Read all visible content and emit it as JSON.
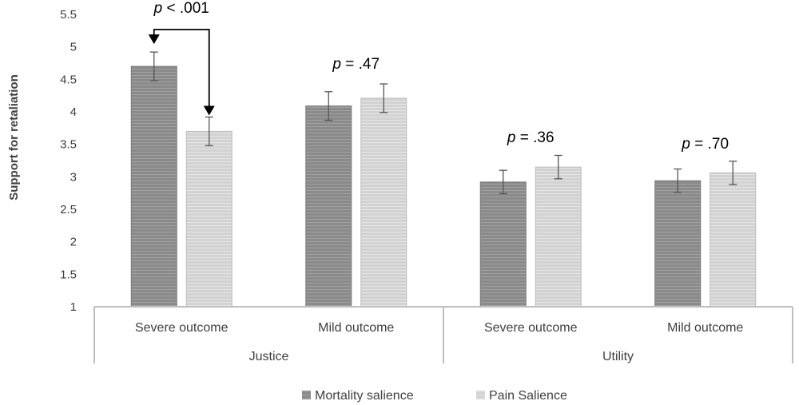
{
  "chart_data": {
    "type": "bar",
    "ylabel": "Support for retaliation",
    "xlabel": "",
    "title": "",
    "ylim": [
      1,
      5.5
    ],
    "yticks": [
      "1",
      "1.5",
      "2",
      "2.5",
      "3",
      "3.5",
      "4",
      "4.5",
      "5",
      "5.5"
    ],
    "groups": [
      {
        "name": "Justice",
        "categories": [
          "Severe outcome",
          "Mild outcome"
        ]
      },
      {
        "name": "Utility",
        "categories": [
          "Severe outcome",
          "Mild outcome"
        ]
      }
    ],
    "categories": [
      "Severe outcome",
      "Mild outcome",
      "Severe outcome",
      "Mild outcome"
    ],
    "series": [
      {
        "name": "Mortality salience",
        "values": [
          4.7,
          4.09,
          2.92,
          2.94
        ],
        "errors": [
          0.22,
          0.22,
          0.18,
          0.18
        ]
      },
      {
        "name": "Pain Salience",
        "values": [
          3.7,
          4.21,
          3.15,
          3.06
        ],
        "errors": [
          0.22,
          0.22,
          0.18,
          0.18
        ]
      }
    ],
    "annotations": [
      {
        "p": "p",
        "rest": " < .001",
        "category_index": 0
      },
      {
        "p": "p",
        "rest": " = .47",
        "category_index": 1
      },
      {
        "p": "p",
        "rest": " = .36",
        "category_index": 2
      },
      {
        "p": "p",
        "rest": " = .70",
        "category_index": 3
      }
    ],
    "grid": false,
    "legend_position": "bottom",
    "colors": {
      "Mortality salience": "#8c8c8c",
      "Pain Salience": "#d4d4d4",
      "axis": "#bfbfbf",
      "text": "#404040"
    }
  }
}
